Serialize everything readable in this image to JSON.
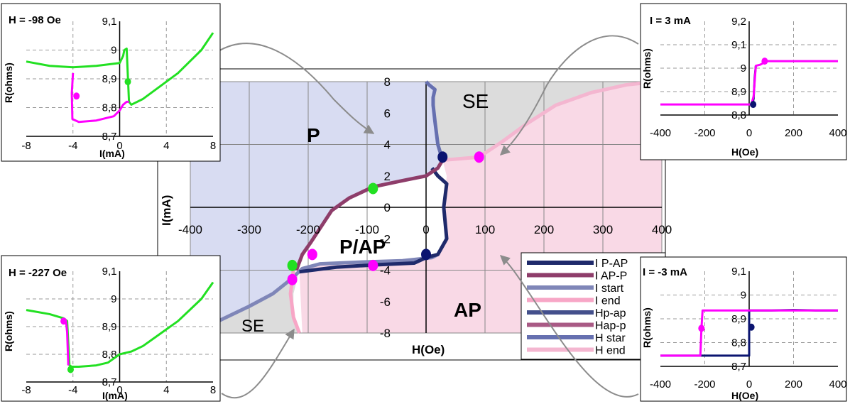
{
  "colors": {
    "p_region": "#d8dcf2",
    "ap_region": "#f9d9e6",
    "se_region": "#dcdcdc",
    "green": "#22e022",
    "magenta": "#ff00ff",
    "navy": "#0b1470",
    "grid": "#8c8c8c"
  },
  "chart_data": [
    {
      "id": "main",
      "type": "line",
      "xlabel": "H(Oe)",
      "ylabel": "I(mA)",
      "xlim": [
        -400,
        400
      ],
      "ylim": [
        -8,
        8
      ],
      "xticks": [
        "-400",
        "-300",
        "-200",
        "-100",
        "0",
        "100",
        "200",
        "300",
        "400"
      ],
      "yticks": [
        "8",
        "6",
        "4",
        "2",
        "0",
        "-2",
        "-4",
        "-6",
        "-8"
      ],
      "grid": true,
      "legend_position": "bottom-right",
      "regions": {
        "P": "P",
        "AP": "AP",
        "PAP": "P/AP",
        "SE_top": "SE",
        "SE_bottom": "SE"
      },
      "legend": [
        {
          "label": "I P-AP",
          "color": "#1f2a6b"
        },
        {
          "label": "I AP-P",
          "color": "#8e3d6a"
        },
        {
          "label": "I start",
          "color": "#7f86b8"
        },
        {
          "label": "I end",
          "color": "#f7a6c6"
        },
        {
          "label": "Hp-ap",
          "color": "#44508c"
        },
        {
          "label": "Hap-p",
          "color": "#a95a85"
        },
        {
          "label": "H star",
          "color": "#6670b0"
        },
        {
          "label": "H end",
          "color": "#f4b6d0"
        }
      ],
      "series": [
        {
          "name": "I start",
          "x": [
            -400,
            -350,
            -300,
            -260,
            -230,
            -210,
            -180,
            -120,
            -40,
            10,
            20
          ],
          "y": [
            -7.8,
            -7.2,
            -6.3,
            -5.5,
            -4.6,
            -3.9,
            -3.6,
            -3.5,
            -3.4,
            -3.2,
            -3.0
          ]
        },
        {
          "name": "I P-AP",
          "x": [
            -215,
            -150,
            -80,
            -20,
            0,
            20,
            35,
            30,
            35,
            20,
            10
          ],
          "y": [
            -4.1,
            -3.8,
            -3.65,
            -3.55,
            -3.2,
            -3.0,
            -2.0,
            0,
            1.5,
            2.0,
            2.5
          ]
        },
        {
          "name": "I AP-P",
          "x": [
            -220,
            -210,
            -195,
            -160,
            -130,
            -90,
            -40,
            0,
            20,
            28
          ],
          "y": [
            -4.0,
            -3.0,
            -2.2,
            -0.2,
            0.6,
            1.3,
            1.7,
            2.0,
            2.5,
            3.0
          ]
        },
        {
          "name": "H star",
          "x": [
            28,
            20,
            15,
            12,
            12,
            15,
            5,
            0
          ],
          "y": [
            3.0,
            4.0,
            5.5,
            6.5,
            7.0,
            7.5,
            7.8,
            8.0
          ]
        },
        {
          "name": "I end",
          "x": [
            -225,
            -230,
            -225,
            -215
          ],
          "y": [
            -4.0,
            -5.5,
            -7.0,
            -8.0
          ]
        },
        {
          "name": "H end",
          "x": [
            28,
            90,
            130,
            170,
            220,
            280,
            340,
            390
          ],
          "y": [
            3.0,
            3.2,
            4.2,
            5.3,
            6.5,
            7.3,
            7.8,
            8.0
          ]
        }
      ],
      "markers": [
        {
          "color": "navy",
          "x": 28,
          "y": 3.2
        },
        {
          "color": "navy",
          "x": 0,
          "y": -3.0
        },
        {
          "color": "green",
          "x": -90,
          "y": 1.2
        },
        {
          "color": "green",
          "x": -227,
          "y": -3.7
        },
        {
          "color": "magenta",
          "x": 90,
          "y": 3.2
        },
        {
          "color": "magenta",
          "x": -193,
          "y": -3.0
        },
        {
          "color": "magenta",
          "x": -90,
          "y": -3.7
        },
        {
          "color": "magenta",
          "x": -227,
          "y": -4.6
        }
      ]
    },
    {
      "id": "inset_tl",
      "type": "line",
      "title": "H = -98 Oe",
      "xlabel": "I(mA)",
      "ylabel": "R(ohms)",
      "xlim": [
        -8,
        8
      ],
      "ylim": [
        8.7,
        9.1
      ],
      "xticks": [
        "-8",
        "-4",
        "0",
        "4",
        "8"
      ],
      "yticks": [
        "9,1",
        "9",
        "8,9",
        "8,8",
        "8,7"
      ],
      "series": [
        {
          "color": "green",
          "x": [
            -8,
            -6,
            -4,
            -2,
            0,
            0.3,
            0.4,
            0.6,
            0.8,
            1,
            2,
            3,
            4,
            5,
            6,
            7,
            8
          ],
          "y": [
            8.96,
            8.945,
            8.94,
            8.945,
            8.955,
            8.98,
            9.0,
            9.005,
            8.82,
            8.81,
            8.83,
            8.86,
            8.89,
            8.92,
            8.96,
            9.0,
            9.06
          ]
        },
        {
          "color": "magenta",
          "x": [
            -4,
            -4.1,
            -4.05,
            -3.5,
            -2,
            -0.5,
            0,
            0.3,
            0.6,
            0.8
          ],
          "y": [
            8.92,
            8.85,
            8.76,
            8.75,
            8.755,
            8.77,
            8.79,
            8.81,
            8.82,
            8.82
          ]
        }
      ],
      "markers": [
        {
          "color": "green",
          "x": 0.7,
          "y": 8.89
        },
        {
          "color": "magenta",
          "x": -3.7,
          "y": 8.84
        }
      ]
    },
    {
      "id": "inset_bl",
      "type": "line",
      "title": "H = -227 Oe",
      "xlabel": "I(mA)",
      "ylabel": "R(ohms)",
      "xlim": [
        -8,
        8
      ],
      "ylim": [
        8.7,
        9.1
      ],
      "xticks": [
        "-8",
        "-4",
        "0",
        "4",
        "8"
      ],
      "yticks": [
        "9,1",
        "9",
        "8,9",
        "8,8",
        "8,7"
      ],
      "series": [
        {
          "color": "green",
          "x": [
            -8,
            -6,
            -4.8,
            -4.5,
            -4.3,
            -4.1,
            -3.5,
            -2,
            -1,
            0,
            1,
            2,
            3,
            4,
            5,
            6,
            7,
            8
          ],
          "y": [
            8.96,
            8.945,
            8.93,
            8.92,
            8.76,
            8.755,
            8.755,
            8.76,
            8.77,
            8.8,
            8.81,
            8.83,
            8.86,
            8.89,
            8.92,
            8.96,
            9.0,
            9.06
          ]
        },
        {
          "color": "magenta",
          "x": [
            -5,
            -4.6,
            -4.5,
            -4.4
          ],
          "y": [
            8.92,
            8.92,
            8.88,
            8.76
          ]
        }
      ],
      "markers": [
        {
          "color": "magenta",
          "x": -4.8,
          "y": 8.92
        },
        {
          "color": "green",
          "x": -4.2,
          "y": 8.745
        }
      ]
    },
    {
      "id": "inset_tr",
      "type": "line",
      "title": "I = 3 mA",
      "xlabel": "H(Oe)",
      "ylabel": "R(ohms)",
      "xlim": [
        -400,
        400
      ],
      "ylim": [
        8.8,
        9.2
      ],
      "xticks": [
        "-400",
        "-200",
        "0",
        "200",
        "400"
      ],
      "yticks": [
        "9,2",
        "9,1",
        "9",
        "8,9",
        "8,8"
      ],
      "series": [
        {
          "color": "navy",
          "x": [
            15,
            20,
            25,
            30
          ],
          "y": [
            8.845,
            8.87,
            8.96,
            9.01
          ]
        },
        {
          "color": "magenta",
          "x": [
            -400,
            10,
            20,
            30,
            50,
            60,
            70,
            400
          ],
          "y": [
            8.845,
            8.845,
            8.88,
            9.01,
            9.015,
            9.02,
            9.03,
            9.03
          ]
        }
      ],
      "markers": [
        {
          "color": "navy",
          "x": 18,
          "y": 8.845
        },
        {
          "color": "magenta",
          "x": 70,
          "y": 9.03
        }
      ]
    },
    {
      "id": "inset_br",
      "type": "line",
      "title": "I = -3 mA",
      "xlabel": "H(Oe)",
      "ylabel": "R(ohms)",
      "xlim": [
        -400,
        400
      ],
      "ylim": [
        8.7,
        9.1
      ],
      "xticks": [
        "-400",
        "-200",
        "0",
        "200",
        "400"
      ],
      "yticks": [
        "9,1",
        "9",
        "8,9",
        "8,8",
        "8,7"
      ],
      "series": [
        {
          "color": "navy",
          "x": [
            -400,
            -200,
            0,
            0,
            0,
            100,
            200,
            300,
            400
          ],
          "y": [
            8.745,
            8.745,
            8.745,
            8.8,
            8.935,
            8.935,
            8.937,
            8.935,
            8.935
          ]
        },
        {
          "color": "magenta",
          "x": [
            -400,
            -220,
            -215,
            -210,
            400
          ],
          "y": [
            8.745,
            8.745,
            8.86,
            8.935,
            8.935
          ]
        }
      ],
      "markers": [
        {
          "color": "magenta",
          "x": -215,
          "y": 8.86
        },
        {
          "color": "navy",
          "x": 10,
          "y": 8.865
        }
      ]
    }
  ]
}
